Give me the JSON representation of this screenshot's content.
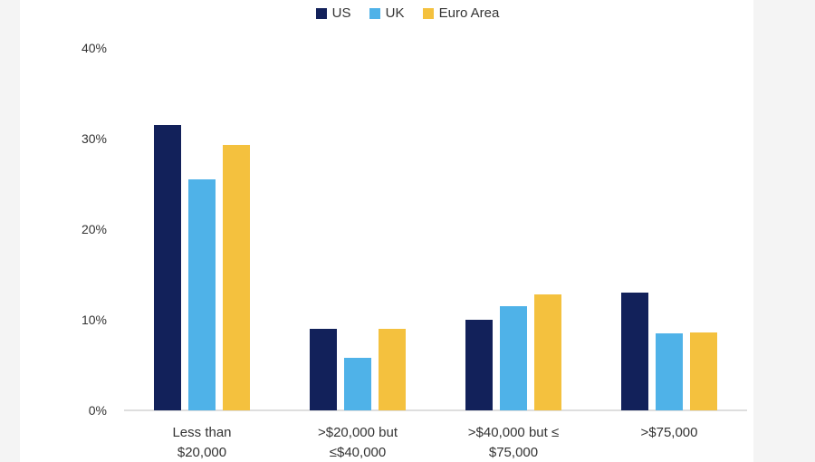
{
  "chart_data": {
    "type": "bar",
    "categories": [
      [
        "Less than",
        "$20,000"
      ],
      [
        ">$20,000 but",
        "≤$40,000"
      ],
      [
        ">$40,000 but ≤",
        "$75,000"
      ],
      [
        ">$75,000"
      ]
    ],
    "series": [
      {
        "name": "US",
        "color": "#12215a",
        "values": [
          31.5,
          9.0,
          10.0,
          13.0
        ]
      },
      {
        "name": "UK",
        "color": "#4fb2e8",
        "values": [
          25.5,
          5.8,
          11.5,
          8.5
        ]
      },
      {
        "name": "Euro Area",
        "color": "#f4c13e",
        "values": [
          29.3,
          9.0,
          12.8,
          8.6
        ]
      }
    ],
    "yticks": [
      "0%",
      "10%",
      "20%",
      "30%",
      "40%"
    ],
    "ylim": [
      0,
      40
    ],
    "grid": false,
    "legend_position": "top-center"
  }
}
